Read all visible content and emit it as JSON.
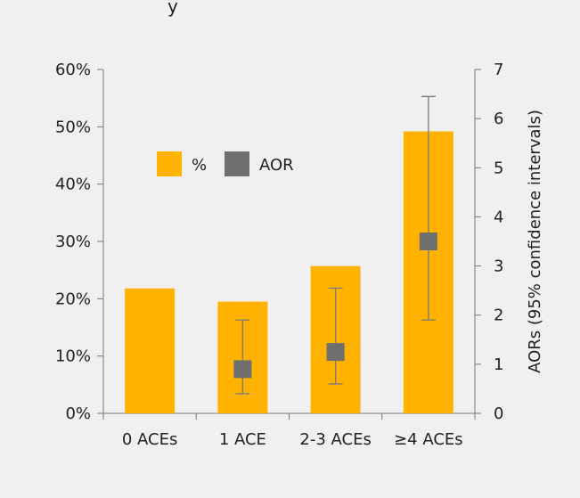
{
  "chart_data": {
    "type": "bar",
    "title_fragment": "y",
    "categories": [
      "0 ACEs",
      "1 ACE",
      "2-3 ACEs",
      "≥4 ACEs"
    ],
    "series": [
      {
        "name": "%",
        "axis": "left",
        "color": "#FFB300",
        "values": [
          21.8,
          19.5,
          25.7,
          49.2
        ]
      },
      {
        "name": "AOR",
        "axis": "right",
        "color": "#6F6F6F",
        "values": [
          null,
          0.9,
          1.25,
          3.5
        ],
        "ci_low": [
          null,
          0.4,
          0.6,
          1.9
        ],
        "ci_high": [
          null,
          1.9,
          2.55,
          6.45
        ]
      }
    ],
    "y_left": {
      "ticks": [
        "0%",
        "10%",
        "20%",
        "30%",
        "40%",
        "50%",
        "60%"
      ],
      "ylim": [
        0,
        60
      ]
    },
    "y_right": {
      "ticks": [
        "0",
        "1",
        "2",
        "3",
        "4",
        "5",
        "6",
        "7"
      ],
      "ylim": [
        0,
        7
      ],
      "label": "AORs (95% confidence intervals)"
    },
    "legend": {
      "placement": "upper-left-inside"
    },
    "grid": false,
    "colors": {
      "background": "#F0F0F0",
      "axis": "#777777",
      "errorbar": "#7A7A7A"
    }
  }
}
